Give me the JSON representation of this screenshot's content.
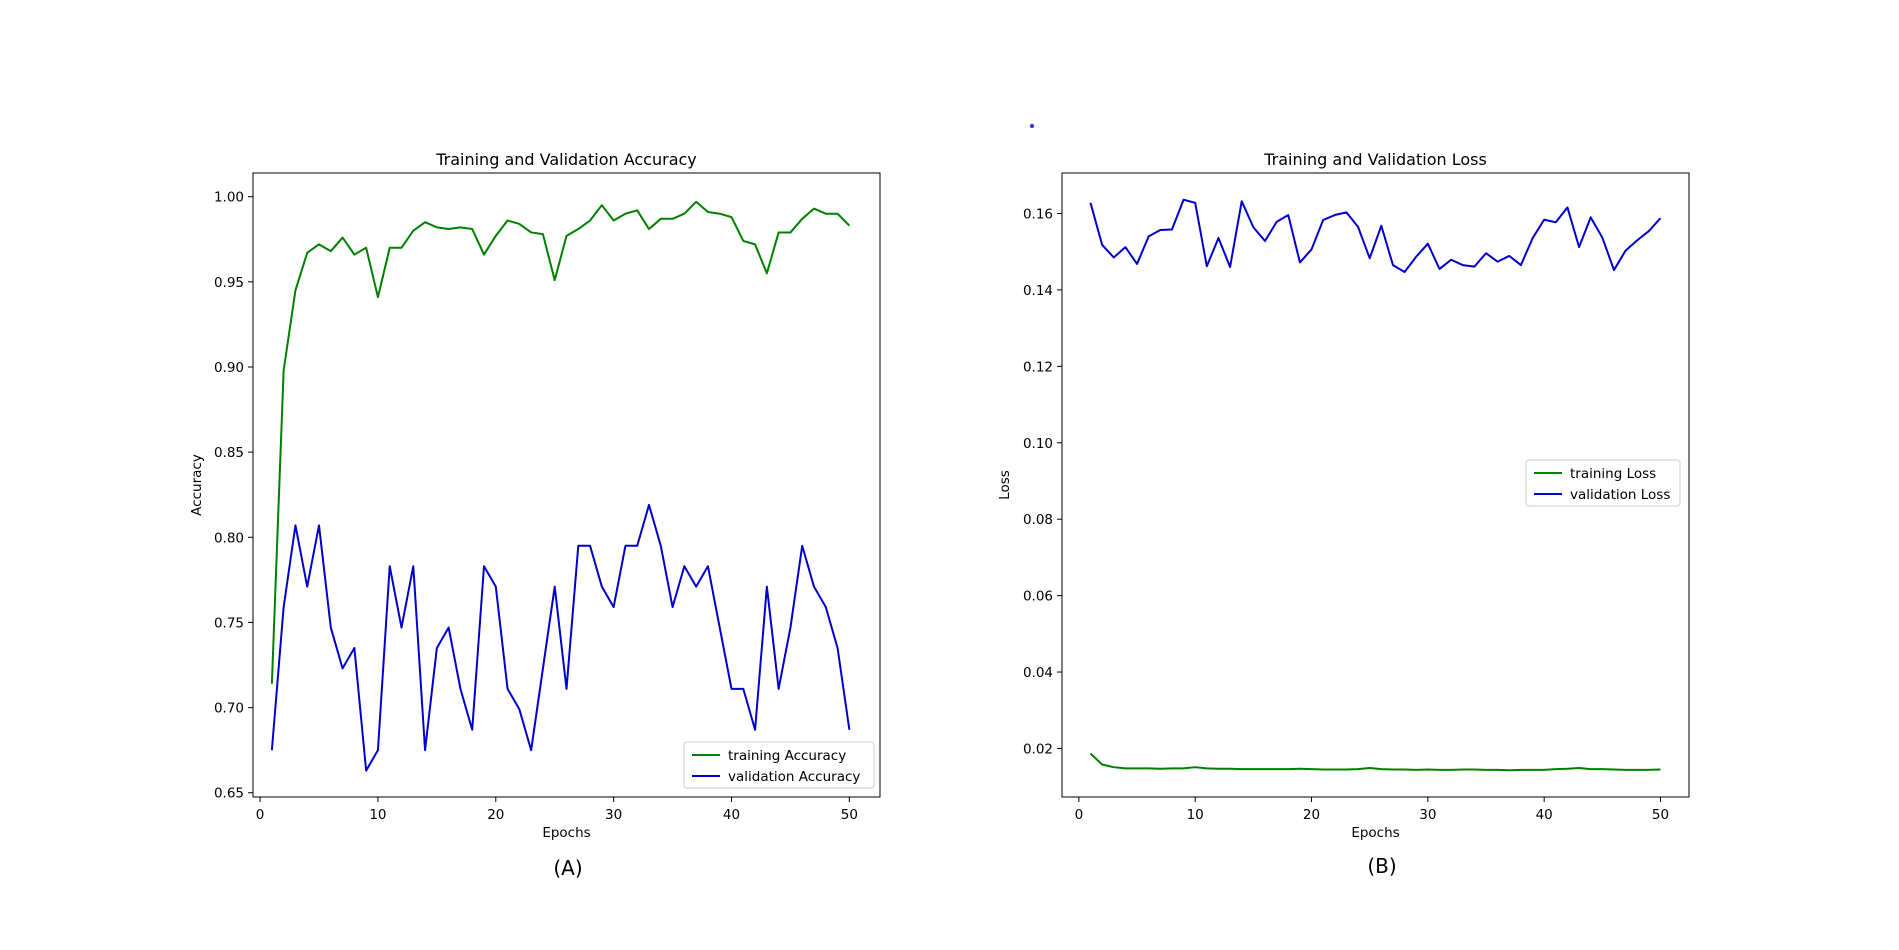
{
  "captions": {
    "a": "(A)",
    "b": "(B)"
  },
  "chart_data": [
    {
      "type": "line",
      "title": "Training and Validation Accuracy",
      "xlabel": "Epochs",
      "ylabel": "Accuracy",
      "xlim": [
        -0.6,
        52.6
      ],
      "ylim": [
        0.6475,
        1.0139
      ],
      "xticks": [
        0,
        10,
        20,
        30,
        40,
        50
      ],
      "yticks": [
        0.65,
        0.7,
        0.75,
        0.8,
        0.85,
        0.9,
        0.95,
        1.0
      ],
      "xtick_labels": [
        "0",
        "10",
        "20",
        "30",
        "40",
        "50"
      ],
      "ytick_labels": [
        "0.65",
        "0.70",
        "0.75",
        "0.80",
        "0.85",
        "0.90",
        "0.95",
        "1.00"
      ],
      "grid": false,
      "legend_position": "bottom-right",
      "x": [
        1,
        2,
        3,
        4,
        5,
        6,
        7,
        8,
        9,
        10,
        11,
        12,
        13,
        14,
        15,
        16,
        17,
        18,
        19,
        20,
        21,
        22,
        23,
        24,
        25,
        26,
        27,
        28,
        29,
        30,
        31,
        32,
        33,
        34,
        35,
        36,
        37,
        38,
        39,
        40,
        41,
        42,
        43,
        44,
        45,
        46,
        47,
        48,
        49,
        50
      ],
      "series": [
        {
          "name": "training Accuracy",
          "color": "#008000",
          "values": [
            0.714,
            0.898,
            0.945,
            0.967,
            0.972,
            0.968,
            0.976,
            0.966,
            0.97,
            0.941,
            0.97,
            0.97,
            0.98,
            0.985,
            0.982,
            0.981,
            0.982,
            0.981,
            0.966,
            0.977,
            0.986,
            0.984,
            0.979,
            0.978,
            0.951,
            0.977,
            0.981,
            0.986,
            0.995,
            0.986,
            0.99,
            0.992,
            0.981,
            0.987,
            0.987,
            0.99,
            0.997,
            0.991,
            0.99,
            0.988,
            0.974,
            0.972,
            0.955,
            0.979,
            0.979,
            0.987,
            0.993,
            0.99,
            0.99,
            0.983
          ]
        },
        {
          "name": "validation Accuracy",
          "color": "#0000cd",
          "values": [
            0.675,
            0.759,
            0.807,
            0.771,
            0.807,
            0.747,
            0.723,
            0.735,
            0.663,
            0.675,
            0.783,
            0.747,
            0.783,
            0.675,
            0.735,
            0.747,
            0.711,
            0.687,
            0.783,
            0.771,
            0.711,
            0.699,
            0.675,
            0.723,
            0.771,
            0.711,
            0.795,
            0.795,
            0.771,
            0.759,
            0.795,
            0.795,
            0.819,
            0.795,
            0.759,
            0.783,
            0.771,
            0.783,
            0.747,
            0.711,
            0.711,
            0.687,
            0.771,
            0.711,
            0.747,
            0.795,
            0.771,
            0.759,
            0.735,
            0.687
          ]
        }
      ]
    },
    {
      "type": "line",
      "title": "Training and Validation Loss",
      "xlabel": "Epochs",
      "ylabel": "Loss",
      "xlim": [
        -1.45,
        52.45
      ],
      "ylim": [
        0.0073,
        0.1706
      ],
      "xticks": [
        0,
        10,
        20,
        30,
        40,
        50
      ],
      "yticks": [
        0.02,
        0.04,
        0.06,
        0.08,
        0.1,
        0.12,
        0.14,
        0.16
      ],
      "xtick_labels": [
        "0",
        "10",
        "20",
        "30",
        "40",
        "50"
      ],
      "ytick_labels": [
        "0.02",
        "0.04",
        "0.06",
        "0.08",
        "0.10",
        "0.12",
        "0.14",
        "0.16"
      ],
      "grid": false,
      "legend_position": "center-right",
      "x": [
        1,
        2,
        3,
        4,
        5,
        6,
        7,
        8,
        9,
        10,
        11,
        12,
        13,
        14,
        15,
        16,
        17,
        18,
        19,
        20,
        21,
        22,
        23,
        24,
        25,
        26,
        27,
        28,
        29,
        30,
        31,
        32,
        33,
        34,
        35,
        36,
        37,
        38,
        39,
        40,
        41,
        42,
        43,
        44,
        45,
        46,
        47,
        48,
        49,
        50
      ],
      "series": [
        {
          "name": "training Loss",
          "color": "#008000",
          "values": [
            0.0187,
            0.0158,
            0.0151,
            0.0148,
            0.0148,
            0.0148,
            0.0147,
            0.0148,
            0.0148,
            0.0151,
            0.0148,
            0.0147,
            0.0147,
            0.0146,
            0.0146,
            0.0146,
            0.0146,
            0.0146,
            0.0147,
            0.0146,
            0.0145,
            0.0145,
            0.0145,
            0.0146,
            0.0149,
            0.0146,
            0.0145,
            0.0145,
            0.0144,
            0.0145,
            0.0144,
            0.0144,
            0.0145,
            0.0145,
            0.0144,
            0.0144,
            0.0143,
            0.0144,
            0.0144,
            0.0144,
            0.0146,
            0.0147,
            0.0149,
            0.0146,
            0.0146,
            0.0145,
            0.0144,
            0.0144,
            0.0144,
            0.0145
          ]
        },
        {
          "name": "validation Loss",
          "color": "#0000cd",
          "values": [
            0.1628,
            0.1518,
            0.1485,
            0.1512,
            0.1468,
            0.154,
            0.1557,
            0.1558,
            0.1636,
            0.1628,
            0.1462,
            0.1536,
            0.146,
            0.1632,
            0.1564,
            0.1528,
            0.1578,
            0.1596,
            0.1472,
            0.1506,
            0.1583,
            0.1596,
            0.1603,
            0.1565,
            0.1483,
            0.1568,
            0.1465,
            0.1447,
            0.1487,
            0.1521,
            0.1455,
            0.1479,
            0.1465,
            0.1461,
            0.1496,
            0.1474,
            0.1489,
            0.1465,
            0.1535,
            0.1584,
            0.1577,
            0.1616,
            0.1512,
            0.159,
            0.1537,
            0.1452,
            0.1503,
            0.153,
            0.1554,
            0.1588
          ]
        }
      ]
    }
  ]
}
